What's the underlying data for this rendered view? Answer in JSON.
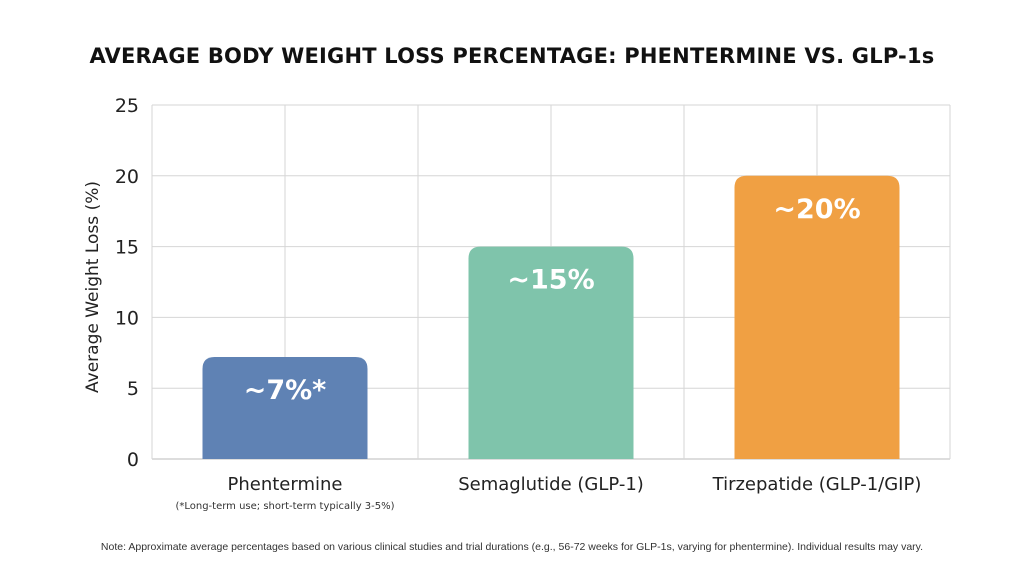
{
  "chart_data": {
    "type": "bar",
    "title": "AVERAGE BODY WEIGHT LOSS PERCENTAGE: PHENTERMINE VS. GLP-1s",
    "xlabel": "",
    "ylabel": "Average Weight Loss (%)",
    "ylim": [
      0,
      25
    ],
    "yticks": [
      0,
      5,
      10,
      15,
      20,
      25
    ],
    "grid": true,
    "categories": [
      "Phentermine",
      "Semaglutide (GLP-1)",
      "Tirzepatide (GLP-1/GIP)"
    ],
    "category_notes": [
      "(*Long-term use; short-term typically 3-5%)",
      "",
      ""
    ],
    "values": [
      7.2,
      15,
      20
    ],
    "data_labels": [
      "~7%*",
      "~15%",
      "~20%"
    ],
    "colors": [
      "#5f82b4",
      "#7fc4ab",
      "#f0a043"
    ],
    "note": "Note: Approximate average percentages based on various clinical studies and trial durations (e.g., 56-72 weeks for GLP-1s, varying for phentermine). Individual results may vary."
  }
}
